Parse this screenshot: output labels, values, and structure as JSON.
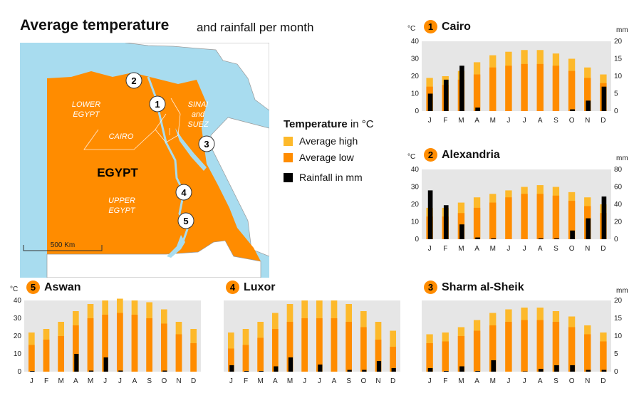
{
  "header": {
    "title": "Average temperature",
    "subtitle": "and rainfall per month"
  },
  "colors": {
    "high": "#fdb92b",
    "low": "#ff8c00",
    "rain": "#000000",
    "water": "#a8dcef",
    "land": "#ff8c00",
    "bg": "#e6e6e6"
  },
  "map": {
    "country_label": "EGYPT",
    "regions": [
      "LOWER EGYPT",
      "SINAI and SUEZ",
      "CAIRO",
      "UPPER EGYPT"
    ],
    "scale_label": "500 Km",
    "markers": [
      "1",
      "2",
      "3",
      "4",
      "5"
    ]
  },
  "legend": {
    "title": "Temperature",
    "title_unit": "in °C",
    "items": [
      {
        "label": "Average high",
        "color": "#fdb92b"
      },
      {
        "label": "Average low",
        "color": "#ff8c00"
      },
      {
        "label": "Rainfall in mm",
        "color": "#000000"
      }
    ]
  },
  "chart_data": [
    {
      "type": "bar",
      "number": "1",
      "title": "Cairo",
      "categories": [
        "J",
        "F",
        "M",
        "A",
        "M",
        "J",
        "J",
        "A",
        "S",
        "O",
        "N",
        "D"
      ],
      "left_unit": "°C",
      "right_unit": "mm",
      "ylim": [
        0,
        40
      ],
      "yticks": [
        0,
        10,
        20,
        30,
        40
      ],
      "y2lim": [
        0,
        20
      ],
      "y2ticks": [
        0,
        5,
        10,
        15,
        20
      ],
      "series": [
        {
          "name": "Average high",
          "values": [
            19,
            20,
            23,
            28,
            32,
            34,
            35,
            35,
            33,
            30,
            25,
            21
          ]
        },
        {
          "name": "Average low",
          "values": [
            14,
            15,
            18,
            21,
            25,
            26,
            27,
            27,
            26,
            23,
            19,
            16
          ]
        },
        {
          "name": "Rainfall in mm",
          "values": [
            5,
            9,
            13,
            1,
            0,
            0,
            0,
            0,
            0,
            0.5,
            3,
            7
          ]
        }
      ]
    },
    {
      "type": "bar",
      "number": "2",
      "title": "Alexandria",
      "categories": [
        "J",
        "F",
        "M",
        "A",
        "M",
        "J",
        "J",
        "A",
        "S",
        "O",
        "N",
        "D"
      ],
      "left_unit": "°C",
      "right_unit": "mm",
      "ylim": [
        0,
        40
      ],
      "yticks": [
        0,
        10,
        20,
        30,
        40
      ],
      "y2lim": [
        0,
        80
      ],
      "y2ticks": [
        0,
        20,
        40,
        60,
        80
      ],
      "series": [
        {
          "name": "Average high",
          "values": [
            18,
            18,
            21,
            24,
            26,
            28,
            30,
            31,
            30,
            27,
            24,
            20
          ]
        },
        {
          "name": "Average low",
          "values": [
            13,
            13,
            15,
            18,
            21,
            24,
            26,
            26,
            25,
            22,
            19,
            15
          ]
        },
        {
          "name": "Rainfall in mm",
          "values": [
            56,
            39,
            17,
            2,
            1,
            0,
            0,
            1,
            1,
            10,
            24,
            49
          ]
        }
      ]
    },
    {
      "type": "bar",
      "number": "5",
      "title": "Aswan",
      "categories": [
        "J",
        "F",
        "M",
        "A",
        "M",
        "J",
        "J",
        "A",
        "S",
        "O",
        "N",
        "D"
      ],
      "left_unit": "°C",
      "right_unit": "",
      "ylim": [
        0,
        40
      ],
      "yticks": [
        0,
        10,
        20,
        30,
        40
      ],
      "y2lim": [
        0,
        20
      ],
      "y2ticks": [],
      "series": [
        {
          "name": "Average high",
          "values": [
            22,
            24,
            28,
            34,
            38,
            40,
            41,
            40,
            39,
            35,
            28,
            24
          ]
        },
        {
          "name": "Average low",
          "values": [
            15,
            18,
            20,
            26,
            30,
            32,
            33,
            32,
            30,
            27,
            21,
            16
          ]
        },
        {
          "name": "Rainfall in mm",
          "values": [
            0.2,
            0,
            0,
            5,
            0.3,
            4,
            0.3,
            0,
            0,
            0.3,
            0,
            0
          ]
        }
      ]
    },
    {
      "type": "bar",
      "number": "4",
      "title": "Luxor",
      "categories": [
        "J",
        "F",
        "M",
        "A",
        "M",
        "J",
        "J",
        "A",
        "S",
        "O",
        "N",
        "D"
      ],
      "left_unit": "",
      "right_unit": "",
      "ylim": [
        0,
        40
      ],
      "yticks": [],
      "y2lim": [
        0,
        20
      ],
      "y2ticks": [],
      "series": [
        {
          "name": "Average high",
          "values": [
            22,
            24,
            28,
            33,
            38,
            40,
            40,
            40,
            38,
            34,
            28,
            23
          ]
        },
        {
          "name": "Average low",
          "values": [
            13,
            15,
            19,
            24,
            28,
            30,
            30,
            30,
            28,
            25,
            18,
            14
          ]
        },
        {
          "name": "Rainfall in mm",
          "values": [
            1.8,
            0.2,
            0.2,
            1.5,
            4,
            0,
            2,
            0,
            0.5,
            0.5,
            3,
            1
          ]
        }
      ]
    },
    {
      "type": "bar",
      "number": "3",
      "title": "Sharm al-Sheik",
      "categories": [
        "J",
        "F",
        "M",
        "A",
        "M",
        "J",
        "J",
        "A",
        "S",
        "O",
        "N",
        "D"
      ],
      "left_unit": "",
      "right_unit": "mm",
      "ylim": [
        0,
        40
      ],
      "yticks": [],
      "y2lim": [
        0,
        20
      ],
      "y2ticks": [
        0,
        5,
        10,
        15,
        20
      ],
      "series": [
        {
          "name": "Average high",
          "values": [
            21,
            22,
            25,
            29,
            33,
            35,
            36,
            36,
            34,
            31,
            26,
            22
          ]
        },
        {
          "name": "Average low",
          "values": [
            16,
            17,
            20,
            23,
            26,
            28,
            29,
            29,
            28,
            25,
            21,
            17
          ]
        },
        {
          "name": "Rainfall in mm",
          "values": [
            1,
            0.2,
            1.5,
            0.2,
            3.2,
            0,
            0.1,
            0.8,
            1.8,
            1.8,
            0.5,
            0.5
          ]
        }
      ]
    }
  ]
}
